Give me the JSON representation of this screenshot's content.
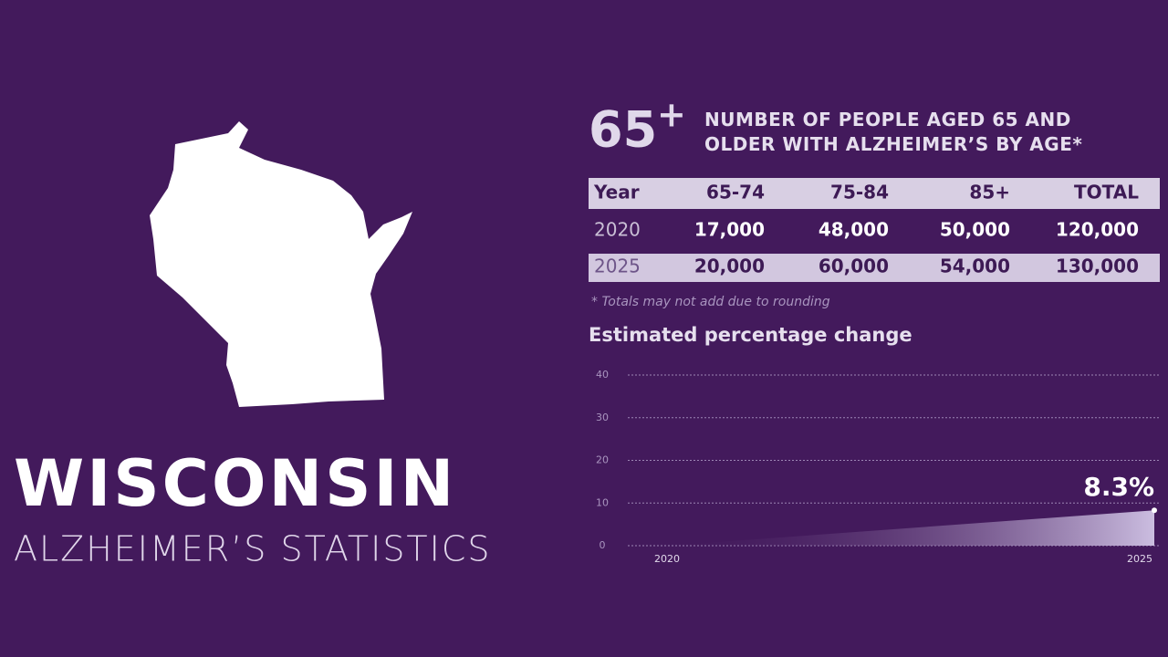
{
  "title": "WISCONSIN",
  "subtitle": "ALZHEIMER’S STATISTICS",
  "badge": {
    "number": "65",
    "sup": "+"
  },
  "heading": "NUMBER OF PEOPLE AGED 65 AND OLDER WITH ALZHEIMER’S BY AGE*",
  "table": {
    "header": [
      "Year",
      "65-74",
      "75-84",
      "85+",
      "TOTAL"
    ],
    "rows": [
      [
        "2020",
        "17,000",
        "48,000",
        "50,000",
        "120,000"
      ],
      [
        "2025",
        "20,000",
        "60,000",
        "54,000",
        "130,000"
      ]
    ]
  },
  "note": "* Totals may not add due to rounding",
  "chart_data": {
    "type": "area",
    "title": "Estimated percentage change",
    "x": [
      "2020",
      "2025"
    ],
    "values": [
      0,
      8.3
    ],
    "value_labels": [
      null,
      "8.3%"
    ],
    "color": "#cbbde0",
    "ylim": [
      0,
      40
    ],
    "yticks": [
      0,
      10,
      20,
      30,
      40
    ],
    "grid": true
  }
}
